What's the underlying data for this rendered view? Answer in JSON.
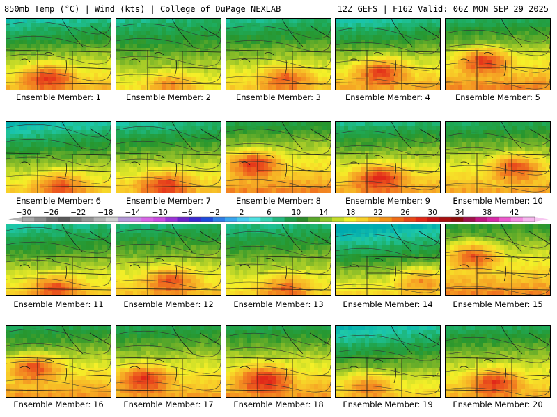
{
  "header": {
    "left": "850mb Temp (°C) | Wind (kts) | College of DuPage NEXLAB",
    "right": "12Z GEFS | F162 Valid: 06Z MON SEP 29 2025"
  },
  "members": [
    {
      "label": "Ensemble Member: 1",
      "warm": 0.8,
      "cool": 0.45,
      "hot": [
        0.38,
        0.78
      ]
    },
    {
      "label": "Ensemble Member: 2",
      "warm": 0.55,
      "cool": 0.35,
      "hot": [
        0.5,
        0.9
      ]
    },
    {
      "label": "Ensemble Member: 3",
      "warm": 0.7,
      "cool": 0.35,
      "hot": [
        0.55,
        0.8
      ]
    },
    {
      "label": "Ensemble Member: 4",
      "warm": 0.85,
      "cool": 0.45,
      "hot": [
        0.42,
        0.7
      ]
    },
    {
      "label": "Ensemble Member: 5",
      "warm": 0.95,
      "cool": 0.25,
      "hot": [
        0.35,
        0.55
      ]
    },
    {
      "label": "Ensemble Member: 6",
      "warm": 0.7,
      "cool": 0.55,
      "hot": [
        0.5,
        0.85
      ]
    },
    {
      "label": "Ensemble Member: 7",
      "warm": 0.75,
      "cool": 0.4,
      "hot": [
        0.45,
        0.85
      ]
    },
    {
      "label": "Ensemble Member: 8",
      "warm": 0.95,
      "cool": 0.15,
      "hot": [
        0.25,
        0.55
      ]
    },
    {
      "label": "Ensemble Member: 9",
      "warm": 0.85,
      "cool": 0.35,
      "hot": [
        0.4,
        0.75
      ]
    },
    {
      "label": "Ensemble Member: 10",
      "warm": 0.85,
      "cool": 0.25,
      "hot": [
        0.65,
        0.6
      ]
    },
    {
      "label": "Ensemble Member: 11",
      "warm": 0.7,
      "cool": 0.4,
      "hot": [
        0.45,
        0.85
      ]
    },
    {
      "label": "Ensemble Member: 12",
      "warm": 0.75,
      "cool": 0.3,
      "hot": [
        0.5,
        0.75
      ]
    },
    {
      "label": "Ensemble Member: 13",
      "warm": 0.65,
      "cool": 0.35,
      "hot": [
        0.55,
        0.85
      ]
    },
    {
      "label": "Ensemble Member: 14",
      "warm": 0.65,
      "cool": 0.7,
      "hot": [
        0.8,
        0.75
      ]
    },
    {
      "label": "Ensemble Member: 15",
      "warm": 0.95,
      "cool": 0.05,
      "hot": [
        0.25,
        0.4
      ]
    },
    {
      "label": "Ensemble Member: 16",
      "warm": 0.9,
      "cool": 0.2,
      "hot": [
        0.25,
        0.55
      ]
    },
    {
      "label": "Ensemble Member: 17",
      "warm": 0.85,
      "cool": 0.2,
      "hot": [
        0.25,
        0.7
      ]
    },
    {
      "label": "Ensemble Member: 18",
      "warm": 0.9,
      "cool": 0.2,
      "hot": [
        0.35,
        0.7
      ]
    },
    {
      "label": "Ensemble Member: 19",
      "warm": 0.65,
      "cool": 0.55,
      "hot": [
        0.3,
        0.8
      ]
    },
    {
      "label": "Ensemble Member: 20",
      "warm": 0.8,
      "cool": 0.25,
      "hot": [
        0.45,
        0.75
      ]
    }
  ],
  "colorbar": {
    "labels": [
      "−30",
      "−26",
      "−22",
      "−18",
      "−14",
      "−10",
      "−6",
      "−2",
      "2",
      "6",
      "10",
      "14",
      "18",
      "22",
      "26",
      "30",
      "34",
      "38",
      "42"
    ],
    "colors": [
      "#a8a8a8",
      "#8c8c8c",
      "#6e6e6e",
      "#595959",
      "#7a7a7a",
      "#969696",
      "#b4b4b4",
      "#cfcfcf",
      "#b59ad8",
      "#c98be6",
      "#d766e6",
      "#c94de0",
      "#9a33d6",
      "#6a24c8",
      "#3a2ad0",
      "#1f4bdb",
      "#2f7fe6",
      "#3aa6ee",
      "#48c8ee",
      "#4ee0e0",
      "#38d0b0",
      "#24b880",
      "#1f9c48",
      "#2c8a2a",
      "#5aa82a",
      "#8fc42a",
      "#c4dc2a",
      "#f0ee2a",
      "#f6d02a",
      "#f6b01e",
      "#f39218",
      "#ee6c18",
      "#e84818",
      "#e02a18",
      "#c81414",
      "#a81010",
      "#8e0e0e",
      "#a0104a",
      "#c01880",
      "#d82aa8",
      "#ec5acc",
      "#f58ae0",
      "#f6b6ee"
    ]
  }
}
